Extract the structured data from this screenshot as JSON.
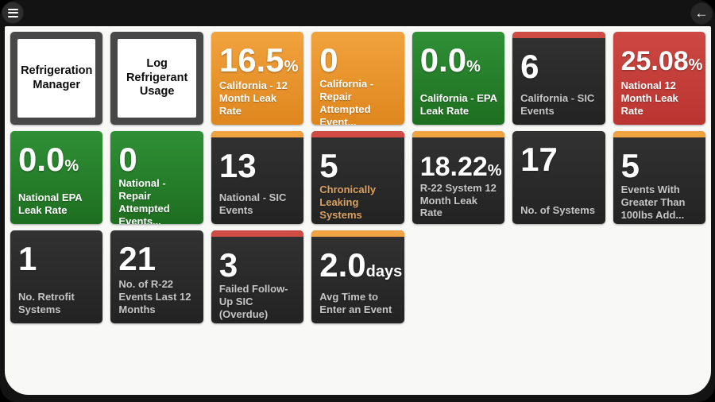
{
  "topbar": {
    "menu_icon": "hamburger-menu",
    "back_icon": "back-arrow"
  },
  "colors": {
    "frame": "#131313",
    "content_bg": "#f8f8f7",
    "tile_dark": "#2b2b2b",
    "tile_orange": "#e8962e",
    "tile_green": "#26802b",
    "tile_red": "#c43f3a",
    "stripe_red": "#ce4c44",
    "stripe_orange": "#f0a340",
    "dark_label_gray": "#c6c6c6",
    "chronic_label_tan": "#d9a262"
  },
  "tiles": [
    {
      "kind": "nav",
      "label": "Refrigeration Manager"
    },
    {
      "kind": "nav",
      "label": "Log Refrigerant Usage"
    },
    {
      "kind": "metric",
      "theme": "orange",
      "value": "16.5",
      "suffix": "%",
      "label": "California - 12 Month Leak Rate"
    },
    {
      "kind": "metric",
      "theme": "orange",
      "value": "0",
      "suffix": "",
      "label": "California - Repair Attempted Event..."
    },
    {
      "kind": "metric",
      "theme": "green",
      "value": "0.0",
      "suffix": "%",
      "label": "California - EPA Leak Rate"
    },
    {
      "kind": "metric",
      "theme": "dark",
      "stripe": "red",
      "value": "6",
      "suffix": "",
      "label": "California - SIC Events"
    },
    {
      "kind": "metric",
      "theme": "red",
      "value": "25.08",
      "suffix": "%",
      "label": "National 12 Month Leak Rate"
    },
    {
      "kind": "metric",
      "theme": "green",
      "value": "0.0",
      "suffix": "%",
      "label": "National EPA Leak Rate"
    },
    {
      "kind": "metric",
      "theme": "green",
      "value": "0",
      "suffix": "",
      "label": "National - Repair Attempted Events..."
    },
    {
      "kind": "metric",
      "theme": "dark",
      "stripe": "orange",
      "value": "13",
      "suffix": "",
      "label": "National - SIC Events"
    },
    {
      "kind": "metric",
      "theme": "dark",
      "stripe": "red",
      "value": "5",
      "suffix": "",
      "label": "Chronically Leaking Systems",
      "label_color": "#d9a262"
    },
    {
      "kind": "metric",
      "theme": "dark",
      "stripe": "orange",
      "value": "18.22",
      "suffix": "%",
      "label": "R-22 System 12 Month Leak Rate"
    },
    {
      "kind": "metric",
      "theme": "dark",
      "value": "17",
      "suffix": "",
      "label": "No. of Systems"
    },
    {
      "kind": "metric",
      "theme": "dark",
      "stripe": "orange",
      "value": "5",
      "suffix": "",
      "label": "Events With Greater Than 100lbs Add..."
    },
    {
      "kind": "metric",
      "theme": "dark",
      "value": "1",
      "suffix": "",
      "label": "No. Retrofit Systems"
    },
    {
      "kind": "metric",
      "theme": "dark",
      "value": "21",
      "suffix": "",
      "label": "No. of R-22 Events Last 12 Months"
    },
    {
      "kind": "metric",
      "theme": "dark",
      "stripe": "red",
      "value": "3",
      "suffix": "",
      "label": "Failed Follow-Up SIC (Overdue)"
    },
    {
      "kind": "metric",
      "theme": "dark",
      "stripe": "orange",
      "value": "2.0",
      "suffix": "days",
      "label": "Avg Time to Enter an Event"
    }
  ]
}
